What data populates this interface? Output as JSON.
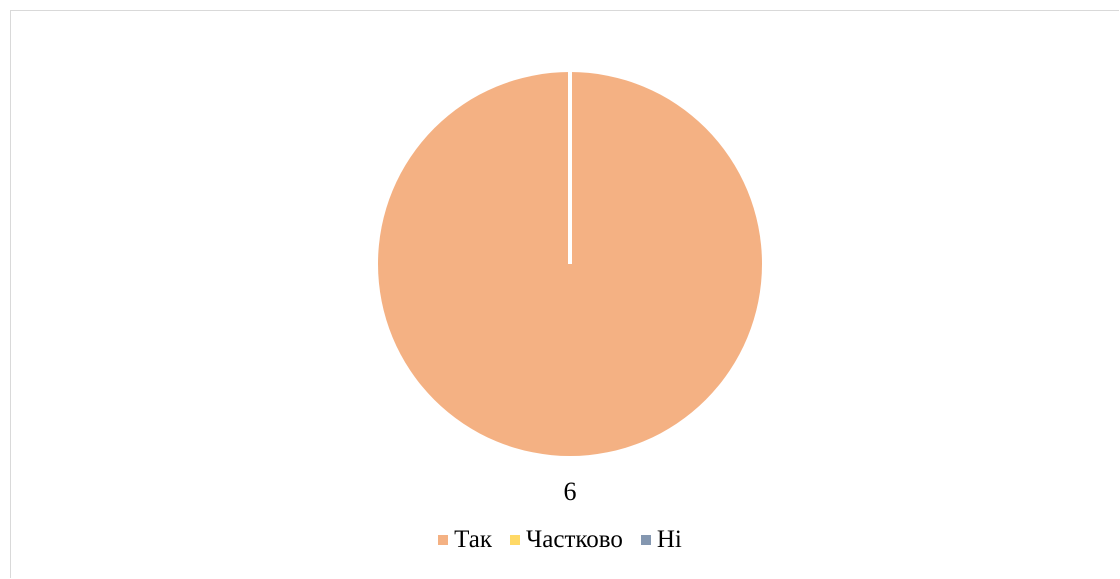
{
  "chart_data": {
    "type": "pie",
    "categories": [
      "Так",
      "Частково",
      "Ні"
    ],
    "values": [
      6,
      0,
      0
    ],
    "data_labels": [
      "6",
      "",
      ""
    ],
    "colors": [
      "#F4B183",
      "#FFD966",
      "#8497B0"
    ],
    "legend_position": "bottom",
    "title": ""
  }
}
